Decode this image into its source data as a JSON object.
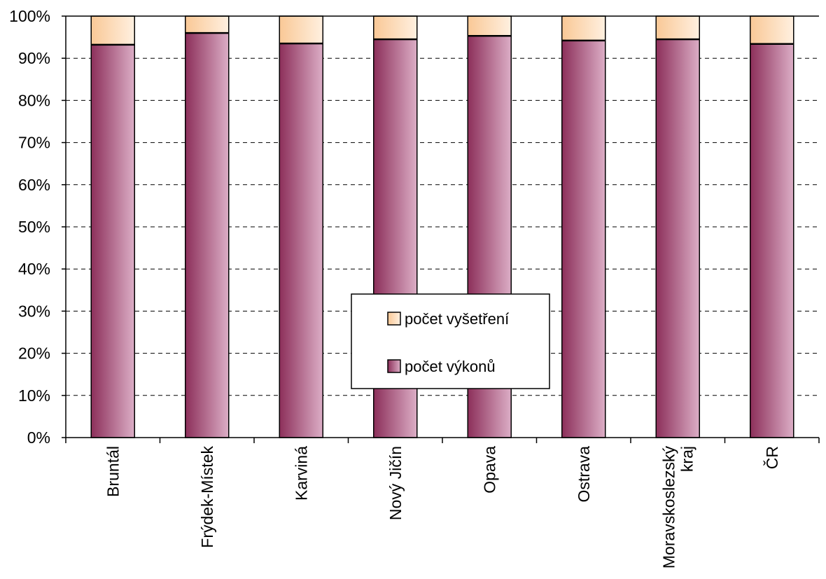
{
  "chart_data": {
    "type": "bar",
    "stacked": true,
    "normalized": true,
    "categories": [
      "Bruntál",
      "Frýdek-Místek",
      "Karviná",
      "Nový Jičín",
      "Opava",
      "Ostrava",
      "Moravskoslezský kraj",
      "ČR"
    ],
    "series": [
      {
        "name": "počet výkonů",
        "values": [
          93.2,
          96.0,
          93.5,
          94.5,
          95.3,
          94.2,
          94.5,
          93.4
        ]
      },
      {
        "name": "počet vyšetření",
        "values": [
          6.8,
          4.0,
          6.5,
          5.5,
          4.7,
          5.8,
          5.5,
          6.6
        ]
      }
    ],
    "ylim": [
      0,
      100
    ],
    "yticks": [
      "0%",
      "10%",
      "20%",
      "30%",
      "40%",
      "50%",
      "60%",
      "70%",
      "80%",
      "90%",
      "100%"
    ],
    "grid": true,
    "legend_position": "center",
    "colors": {
      "vykonu_dark": "#8c2f5a",
      "vykonu_light": "#dcaec6",
      "vysetreni_dark": "#f9c896",
      "vysetreni_light": "#fff0e0",
      "outline": "#000000",
      "grid": "#000000"
    }
  }
}
